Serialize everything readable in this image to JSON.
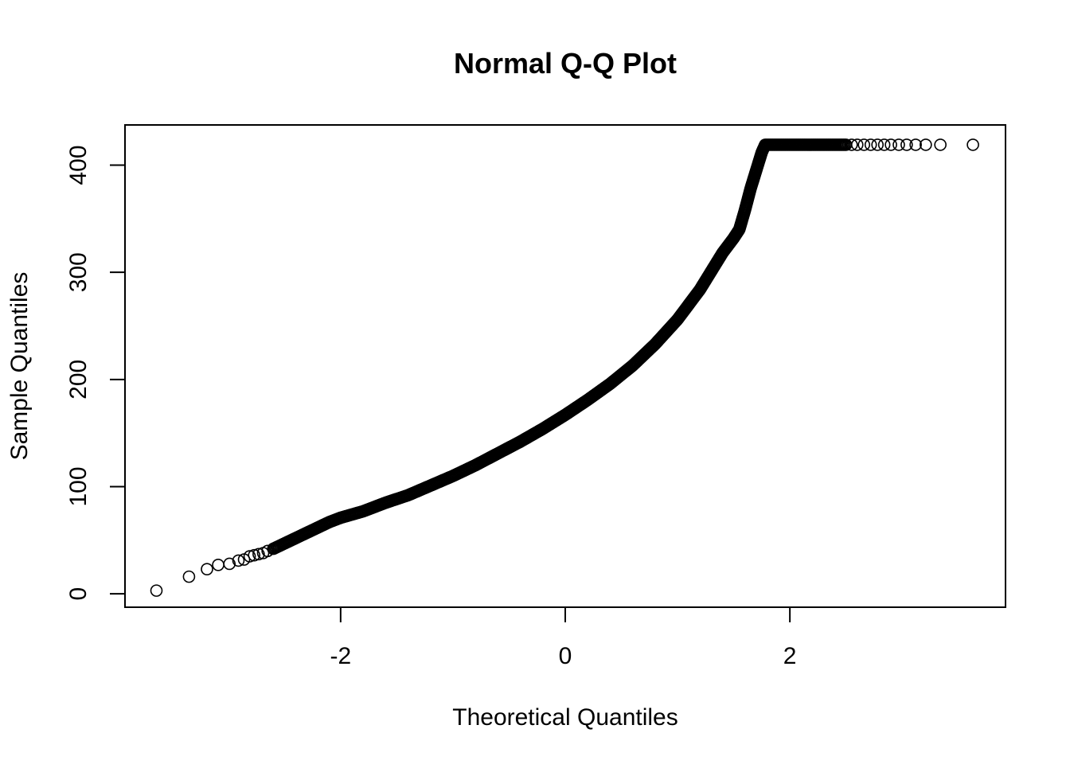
{
  "chart_data": {
    "type": "scatter",
    "title": "Normal Q-Q Plot",
    "xlabel": "Theoretical Quantiles",
    "ylabel": "Sample Quantiles",
    "xlim": [
      -3.92,
      3.92
    ],
    "ylim": [
      -12.5,
      437.5
    ],
    "grid": false,
    "legend": "none",
    "x_ticks": [
      -2,
      0,
      2
    ],
    "x_tick_labels": [
      "-2",
      "0",
      "2"
    ],
    "y_ticks": [
      0,
      100,
      200,
      300,
      400
    ],
    "y_tick_labels": [
      "0",
      "100",
      "200",
      "300",
      "400"
    ],
    "marker": "open-circle",
    "marker_color": "#000000",
    "curve_points": [
      [
        -2.6,
        42
      ],
      [
        -2.5,
        47
      ],
      [
        -2.4,
        52
      ],
      [
        -2.3,
        57
      ],
      [
        -2.2,
        62
      ],
      [
        -2.1,
        67
      ],
      [
        -2.0,
        71
      ],
      [
        -1.8,
        77
      ],
      [
        -1.6,
        85
      ],
      [
        -1.4,
        92
      ],
      [
        -1.2,
        101
      ],
      [
        -1.0,
        110
      ],
      [
        -0.8,
        120
      ],
      [
        -0.6,
        131
      ],
      [
        -0.4,
        142
      ],
      [
        -0.2,
        154
      ],
      [
        0.0,
        167
      ],
      [
        0.2,
        181
      ],
      [
        0.4,
        196
      ],
      [
        0.6,
        213
      ],
      [
        0.8,
        233
      ],
      [
        1.0,
        256
      ],
      [
        1.2,
        284
      ],
      [
        1.4,
        318
      ],
      [
        1.5,
        332
      ],
      [
        1.55,
        340
      ],
      [
        1.6,
        358
      ],
      [
        1.65,
        378
      ],
      [
        1.7,
        395
      ],
      [
        1.75,
        412
      ],
      [
        1.78,
        419
      ]
    ],
    "plateau": {
      "x_from": 1.78,
      "x_to": 2.5,
      "y": 419
    },
    "tail_points_low": [
      [
        -3.64,
        3
      ],
      [
        -3.35,
        16
      ],
      [
        -3.19,
        23
      ],
      [
        -3.09,
        27
      ],
      [
        -2.99,
        28
      ],
      [
        -2.91,
        31
      ],
      [
        -2.86,
        32
      ],
      [
        -2.81,
        35
      ],
      [
        -2.77,
        36
      ],
      [
        -2.73,
        37
      ],
      [
        -2.69,
        38
      ],
      [
        -2.65,
        40
      ]
    ],
    "tail_points_high": [
      [
        2.55,
        419
      ],
      [
        2.6,
        419
      ],
      [
        2.66,
        419
      ],
      [
        2.72,
        419
      ],
      [
        2.78,
        419
      ],
      [
        2.84,
        419
      ],
      [
        2.9,
        419
      ],
      [
        2.97,
        419
      ],
      [
        3.04,
        419
      ],
      [
        3.12,
        419
      ],
      [
        3.21,
        419
      ],
      [
        3.34,
        419
      ],
      [
        3.63,
        419
      ]
    ]
  }
}
